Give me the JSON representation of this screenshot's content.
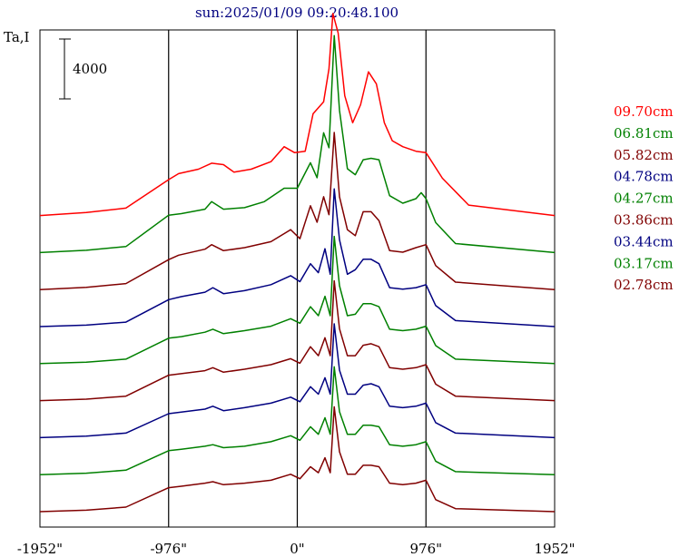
{
  "chart_data": {
    "type": "line",
    "title": "sun:2025/01/09 09:20:48.100",
    "ylabel": "Ta,I",
    "scale_bar_label": "4000",
    "xlim": [
      -1952,
      1952
    ],
    "x_ticks": [
      {
        "value": -1952,
        "label": "-1952\""
      },
      {
        "value": -976,
        "label": "-976\""
      },
      {
        "value": 0,
        "label": "0\""
      },
      {
        "value": 976,
        "label": "976\""
      },
      {
        "value": 1952,
        "label": "1952\""
      }
    ],
    "vertical_lines": [
      -976,
      0,
      976
    ],
    "legend_position": "right",
    "series": [
      {
        "name": "09.70cm",
        "color": "#ff0000",
        "points": [
          [
            -1952,
            0
          ],
          [
            -1600,
            200
          ],
          [
            -1300,
            500
          ],
          [
            -976,
            2400
          ],
          [
            -900,
            2800
          ],
          [
            -750,
            3100
          ],
          [
            -650,
            3500
          ],
          [
            -560,
            3400
          ],
          [
            -480,
            2900
          ],
          [
            -350,
            3100
          ],
          [
            -200,
            3600
          ],
          [
            -100,
            4600
          ],
          [
            -20,
            4200
          ],
          [
            60,
            4300
          ],
          [
            120,
            6800
          ],
          [
            200,
            7600
          ],
          [
            240,
            9800
          ],
          [
            270,
            13500
          ],
          [
            310,
            12200
          ],
          [
            360,
            8000
          ],
          [
            420,
            6200
          ],
          [
            480,
            7400
          ],
          [
            540,
            9600
          ],
          [
            600,
            8800
          ],
          [
            660,
            6200
          ],
          [
            720,
            5000
          ],
          [
            800,
            4600
          ],
          [
            900,
            4300
          ],
          [
            976,
            4200
          ],
          [
            1100,
            2500
          ],
          [
            1300,
            700
          ],
          [
            1952,
            0
          ]
        ]
      },
      {
        "name": "06.81cm",
        "color": "#008000",
        "points": [
          [
            -1952,
            0
          ],
          [
            -1600,
            150
          ],
          [
            -1300,
            400
          ],
          [
            -976,
            2500
          ],
          [
            -880,
            2600
          ],
          [
            -700,
            2900
          ],
          [
            -650,
            3400
          ],
          [
            -560,
            2900
          ],
          [
            -400,
            3000
          ],
          [
            -250,
            3400
          ],
          [
            -100,
            4300
          ],
          [
            0,
            4300
          ],
          [
            100,
            6000
          ],
          [
            150,
            5000
          ],
          [
            200,
            8000
          ],
          [
            240,
            7000
          ],
          [
            280,
            14500
          ],
          [
            320,
            9500
          ],
          [
            380,
            5600
          ],
          [
            440,
            5200
          ],
          [
            500,
            6200
          ],
          [
            560,
            6300
          ],
          [
            620,
            6200
          ],
          [
            700,
            3800
          ],
          [
            800,
            3300
          ],
          [
            900,
            3600
          ],
          [
            940,
            4000
          ],
          [
            976,
            3600
          ],
          [
            1050,
            2000
          ],
          [
            1200,
            600
          ],
          [
            1952,
            0
          ]
        ]
      },
      {
        "name": "05.82cm",
        "color": "#800000",
        "points": [
          [
            -1952,
            0
          ],
          [
            -1600,
            150
          ],
          [
            -1300,
            400
          ],
          [
            -976,
            2000
          ],
          [
            -900,
            2300
          ],
          [
            -700,
            2700
          ],
          [
            -650,
            3000
          ],
          [
            -560,
            2600
          ],
          [
            -400,
            2800
          ],
          [
            -200,
            3200
          ],
          [
            -50,
            4000
          ],
          [
            20,
            3400
          ],
          [
            100,
            5600
          ],
          [
            150,
            4500
          ],
          [
            200,
            6200
          ],
          [
            240,
            5000
          ],
          [
            280,
            10500
          ],
          [
            320,
            6200
          ],
          [
            380,
            4000
          ],
          [
            440,
            3600
          ],
          [
            500,
            5200
          ],
          [
            560,
            5200
          ],
          [
            620,
            4600
          ],
          [
            700,
            2600
          ],
          [
            800,
            2500
          ],
          [
            900,
            2800
          ],
          [
            976,
            3000
          ],
          [
            1050,
            1600
          ],
          [
            1200,
            500
          ],
          [
            1952,
            0
          ]
        ]
      },
      {
        "name": "04.78cm",
        "color": "#000080",
        "points": [
          [
            -1952,
            0
          ],
          [
            -1600,
            100
          ],
          [
            -1300,
            300
          ],
          [
            -976,
            1800
          ],
          [
            -880,
            2000
          ],
          [
            -700,
            2300
          ],
          [
            -640,
            2600
          ],
          [
            -560,
            2200
          ],
          [
            -400,
            2400
          ],
          [
            -200,
            2800
          ],
          [
            -50,
            3400
          ],
          [
            20,
            3000
          ],
          [
            100,
            4200
          ],
          [
            160,
            3600
          ],
          [
            210,
            5200
          ],
          [
            250,
            3500
          ],
          [
            280,
            9200
          ],
          [
            320,
            5800
          ],
          [
            380,
            3500
          ],
          [
            440,
            3800
          ],
          [
            500,
            4500
          ],
          [
            560,
            4500
          ],
          [
            620,
            4200
          ],
          [
            700,
            2600
          ],
          [
            800,
            2500
          ],
          [
            900,
            2600
          ],
          [
            976,
            2800
          ],
          [
            1050,
            1400
          ],
          [
            1200,
            400
          ],
          [
            1952,
            0
          ]
        ]
      },
      {
        "name": "04.27cm",
        "color": "#008000",
        "points": [
          [
            -1952,
            0
          ],
          [
            -1600,
            100
          ],
          [
            -1300,
            300
          ],
          [
            -976,
            1700
          ],
          [
            -880,
            1800
          ],
          [
            -700,
            2100
          ],
          [
            -640,
            2300
          ],
          [
            -560,
            2000
          ],
          [
            -400,
            2200
          ],
          [
            -200,
            2500
          ],
          [
            -50,
            3000
          ],
          [
            20,
            2700
          ],
          [
            100,
            3800
          ],
          [
            160,
            3200
          ],
          [
            210,
            4500
          ],
          [
            250,
            3200
          ],
          [
            280,
            8500
          ],
          [
            320,
            5200
          ],
          [
            380,
            3200
          ],
          [
            440,
            3300
          ],
          [
            500,
            4000
          ],
          [
            560,
            4000
          ],
          [
            620,
            3800
          ],
          [
            700,
            2300
          ],
          [
            800,
            2200
          ],
          [
            900,
            2300
          ],
          [
            976,
            2500
          ],
          [
            1050,
            1200
          ],
          [
            1200,
            300
          ],
          [
            1952,
            0
          ]
        ]
      },
      {
        "name": "03.86cm",
        "color": "#800000",
        "points": [
          [
            -1952,
            0
          ],
          [
            -1600,
            100
          ],
          [
            -1300,
            300
          ],
          [
            -976,
            1700
          ],
          [
            -880,
            1800
          ],
          [
            -700,
            2000
          ],
          [
            -640,
            2200
          ],
          [
            -560,
            1900
          ],
          [
            -400,
            2100
          ],
          [
            -200,
            2400
          ],
          [
            -50,
            2800
          ],
          [
            20,
            2500
          ],
          [
            100,
            3600
          ],
          [
            160,
            3000
          ],
          [
            210,
            4200
          ],
          [
            250,
            3000
          ],
          [
            280,
            8000
          ],
          [
            320,
            4800
          ],
          [
            380,
            3000
          ],
          [
            440,
            3000
          ],
          [
            500,
            3700
          ],
          [
            560,
            3800
          ],
          [
            620,
            3600
          ],
          [
            700,
            2200
          ],
          [
            800,
            2100
          ],
          [
            900,
            2200
          ],
          [
            976,
            2400
          ],
          [
            1050,
            1100
          ],
          [
            1200,
            300
          ],
          [
            1952,
            0
          ]
        ]
      },
      {
        "name": "03.44cm",
        "color": "#000080",
        "points": [
          [
            -1952,
            0
          ],
          [
            -1600,
            100
          ],
          [
            -1300,
            300
          ],
          [
            -976,
            1600
          ],
          [
            -880,
            1700
          ],
          [
            -700,
            1900
          ],
          [
            -640,
            2100
          ],
          [
            -560,
            1800
          ],
          [
            -400,
            2000
          ],
          [
            -200,
            2300
          ],
          [
            -50,
            2700
          ],
          [
            20,
            2400
          ],
          [
            100,
            3400
          ],
          [
            160,
            2900
          ],
          [
            210,
            4000
          ],
          [
            250,
            2900
          ],
          [
            280,
            7600
          ],
          [
            320,
            4500
          ],
          [
            380,
            2900
          ],
          [
            440,
            2900
          ],
          [
            500,
            3500
          ],
          [
            560,
            3600
          ],
          [
            620,
            3400
          ],
          [
            700,
            2100
          ],
          [
            800,
            2000
          ],
          [
            900,
            2100
          ],
          [
            976,
            2300
          ],
          [
            1050,
            1000
          ],
          [
            1200,
            300
          ],
          [
            1952,
            0
          ]
        ]
      },
      {
        "name": "03.17cm",
        "color": "#008000",
        "points": [
          [
            -1952,
            0
          ],
          [
            -1600,
            100
          ],
          [
            -1300,
            300
          ],
          [
            -976,
            1600
          ],
          [
            -880,
            1700
          ],
          [
            -700,
            1900
          ],
          [
            -640,
            2000
          ],
          [
            -560,
            1800
          ],
          [
            -400,
            1900
          ],
          [
            -200,
            2200
          ],
          [
            -50,
            2600
          ],
          [
            20,
            2300
          ],
          [
            100,
            3200
          ],
          [
            160,
            2700
          ],
          [
            210,
            3800
          ],
          [
            250,
            2700
          ],
          [
            280,
            7200
          ],
          [
            320,
            4200
          ],
          [
            380,
            2700
          ],
          [
            440,
            2700
          ],
          [
            500,
            3300
          ],
          [
            560,
            3300
          ],
          [
            620,
            3200
          ],
          [
            700,
            2000
          ],
          [
            800,
            1900
          ],
          [
            900,
            2000
          ],
          [
            976,
            2200
          ],
          [
            1050,
            900
          ],
          [
            1200,
            200
          ],
          [
            1952,
            0
          ]
        ]
      },
      {
        "name": "02.78cm",
        "color": "#800000",
        "points": [
          [
            -1952,
            0
          ],
          [
            -1600,
            100
          ],
          [
            -1300,
            300
          ],
          [
            -976,
            1600
          ],
          [
            -880,
            1700
          ],
          [
            -700,
            1900
          ],
          [
            -640,
            2000
          ],
          [
            -560,
            1800
          ],
          [
            -400,
            1900
          ],
          [
            -200,
            2100
          ],
          [
            -50,
            2500
          ],
          [
            20,
            2200
          ],
          [
            100,
            3000
          ],
          [
            160,
            2600
          ],
          [
            210,
            3600
          ],
          [
            250,
            2600
          ],
          [
            280,
            7000
          ],
          [
            320,
            4000
          ],
          [
            380,
            2500
          ],
          [
            440,
            2500
          ],
          [
            500,
            3100
          ],
          [
            560,
            3100
          ],
          [
            620,
            3000
          ],
          [
            700,
            1900
          ],
          [
            800,
            1800
          ],
          [
            900,
            1900
          ],
          [
            976,
            2100
          ],
          [
            1050,
            800
          ],
          [
            1200,
            200
          ],
          [
            1952,
            0
          ]
        ]
      }
    ]
  }
}
